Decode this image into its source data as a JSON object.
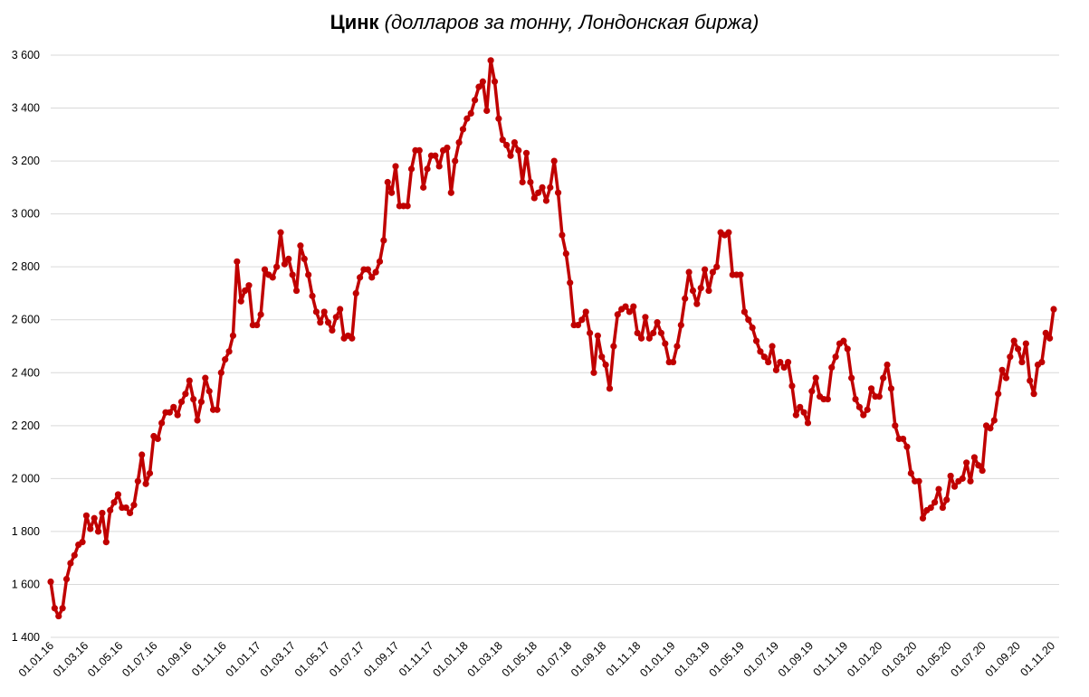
{
  "chart_data": {
    "type": "line",
    "title_bold": "Цинк",
    "title_italic": "(долларов за тонну, Лондонская биржа)",
    "ylim": [
      1400,
      3600
    ],
    "yticks": [
      1400,
      1600,
      1800,
      2000,
      2200,
      2400,
      2600,
      2800,
      3000,
      3200,
      3400,
      3600
    ],
    "ytick_labels": [
      "1 400",
      "1 600",
      "1 800",
      "2 000",
      "2 200",
      "2 400",
      "2 600",
      "2 800",
      "3 000",
      "3 200",
      "3 400",
      "3 600"
    ],
    "xtick_labels": [
      "01.01.16",
      "01.03.16",
      "01.05.16",
      "01.07.16",
      "01.09.16",
      "01.11.16",
      "01.01.17",
      "01.03.17",
      "01.05.17",
      "01.07.17",
      "01.09.17",
      "01.11.17",
      "01.01.18",
      "01.03.18",
      "01.05.18",
      "01.07.18",
      "01.09.18",
      "01.11.18",
      "01.01.19",
      "01.03.19",
      "01.05.19",
      "01.07.19",
      "01.09.19",
      "01.11.19",
      "01.01.20",
      "01.03.20",
      "01.05.20",
      "01.07.20",
      "01.09.20",
      "01.11.20"
    ],
    "grid": "horizontal",
    "series_color": "#c00000",
    "values": [
      1610,
      1510,
      1480,
      1510,
      1620,
      1680,
      1710,
      1750,
      1760,
      1860,
      1810,
      1850,
      1800,
      1870,
      1760,
      1880,
      1910,
      1940,
      1890,
      1890,
      1870,
      1900,
      1990,
      2090,
      1980,
      2020,
      2160,
      2150,
      2210,
      2250,
      2250,
      2270,
      2240,
      2290,
      2320,
      2370,
      2300,
      2220,
      2290,
      2380,
      2330,
      2260,
      2260,
      2400,
      2450,
      2480,
      2540,
      2820,
      2670,
      2710,
      2730,
      2580,
      2580,
      2620,
      2790,
      2770,
      2760,
      2800,
      2930,
      2810,
      2830,
      2770,
      2710,
      2880,
      2830,
      2770,
      2690,
      2630,
      2590,
      2630,
      2590,
      2560,
      2610,
      2640,
      2530,
      2540,
      2530,
      2700,
      2760,
      2790,
      2790,
      2760,
      2780,
      2820,
      2900,
      3120,
      3080,
      3180,
      3030,
      3030,
      3030,
      3170,
      3240,
      3240,
      3100,
      3170,
      3220,
      3220,
      3180,
      3240,
      3250,
      3080,
      3200,
      3270,
      3320,
      3360,
      3380,
      3430,
      3480,
      3500,
      3390,
      3580,
      3500,
      3360,
      3280,
      3260,
      3220,
      3270,
      3240,
      3120,
      3230,
      3120,
      3060,
      3080,
      3100,
      3050,
      3100,
      3200,
      3080,
      2920,
      2850,
      2740,
      2580,
      2580,
      2600,
      2630,
      2550,
      2400,
      2540,
      2460,
      2430,
      2340,
      2500,
      2620,
      2640,
      2650,
      2630,
      2650,
      2550,
      2530,
      2610,
      2530,
      2550,
      2590,
      2550,
      2510,
      2440,
      2440,
      2500,
      2580,
      2680,
      2780,
      2710,
      2660,
      2720,
      2790,
      2710,
      2780,
      2800,
      2930,
      2920,
      2930,
      2770,
      2770,
      2770,
      2630,
      2600,
      2570,
      2520,
      2480,
      2460,
      2440,
      2500,
      2410,
      2440,
      2420,
      2440,
      2350,
      2240,
      2270,
      2250,
      2210,
      2330,
      2380,
      2310,
      2300,
      2300,
      2420,
      2460,
      2510,
      2520,
      2490,
      2380,
      2300,
      2270,
      2240,
      2260,
      2340,
      2310,
      2310,
      2380,
      2430,
      2340,
      2200,
      2150,
      2150,
      2120,
      2020,
      1990,
      1990,
      1850,
      1880,
      1890,
      1910,
      1960,
      1890,
      1920,
      2010,
      1970,
      1990,
      2000,
      2060,
      1990,
      2080,
      2050,
      2030,
      2200,
      2190,
      2220,
      2320,
      2410,
      2380,
      2460,
      2520,
      2490,
      2440,
      2510,
      2370,
      2320,
      2430,
      2440,
      2550,
      2530,
      2640
    ]
  }
}
